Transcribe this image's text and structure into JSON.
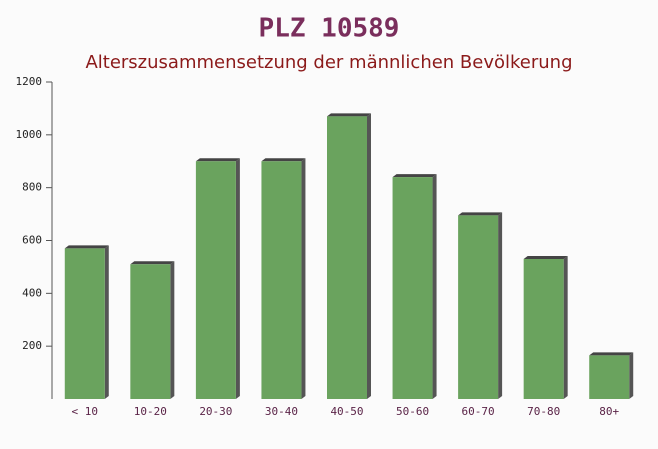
{
  "chart_data": {
    "type": "bar",
    "title": "PLZ 10589",
    "subtitle": "Alterszusammensetzung der männlichen Bevölkerung",
    "categories": [
      "< 10",
      "10-20",
      "20-30",
      "30-40",
      "40-50",
      "50-60",
      "60-70",
      "70-80",
      "80+"
    ],
    "values": [
      570,
      510,
      900,
      900,
      1070,
      840,
      695,
      530,
      165
    ],
    "color": "#6aa35e",
    "ylim": [
      0,
      1200
    ],
    "yticks": [
      200,
      400,
      600,
      800,
      1000,
      1200
    ],
    "grid": false
  }
}
